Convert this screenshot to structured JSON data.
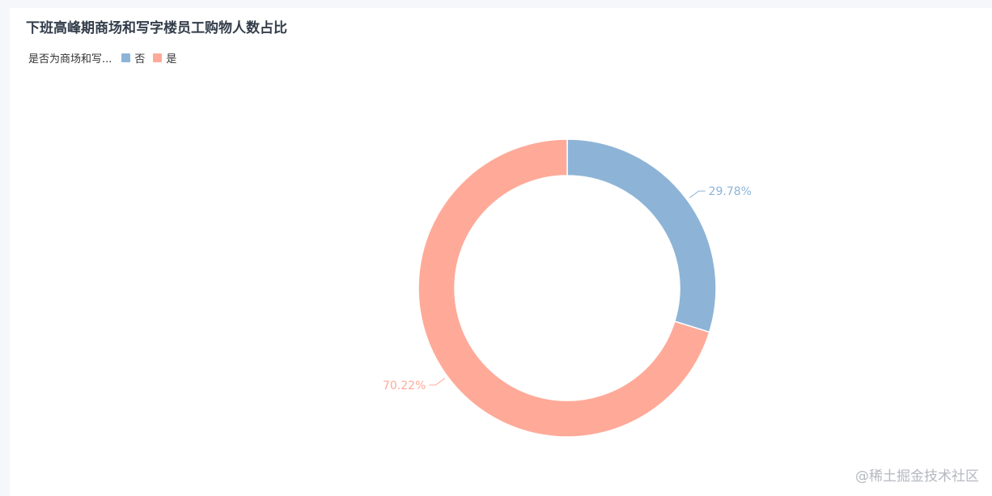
{
  "chart_data": {
    "type": "pie",
    "variant": "donut",
    "title": "下班高峰期商场和写字楼员工购物人数占比",
    "legend": {
      "title": "是否为商场和写...",
      "position": "top-left"
    },
    "series": [
      {
        "name": "否",
        "value": 29.78,
        "label": "29.78%",
        "color": "#8db4d7"
      },
      {
        "name": "是",
        "value": 70.22,
        "label": "70.22%",
        "color": "#ffaa99"
      }
    ]
  },
  "watermark": "@稀土掘金技术社区"
}
